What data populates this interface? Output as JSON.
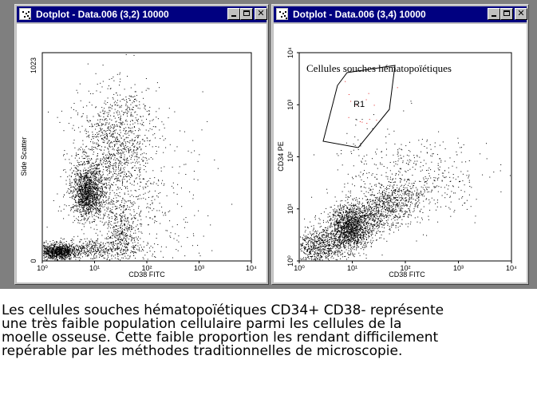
{
  "windows": [
    {
      "title": "Dotplot - Data.006 (3,2) 10000",
      "x_axis": {
        "label": "CD38 FITC",
        "ticks": [
          "10⁰",
          "10¹",
          "10²",
          "10³",
          "10⁴"
        ],
        "scale": "log"
      },
      "y_axis": {
        "label": "Side Scatter",
        "ticks": [
          "0",
          "1023"
        ],
        "scale": "linear"
      }
    },
    {
      "title": "Dotplot - Data.006 (3,4) 10000",
      "x_axis": {
        "label": "CD38 FITC",
        "ticks": [
          "10⁰",
          "10¹",
          "10²",
          "10³",
          "10⁴"
        ],
        "scale": "log"
      },
      "y_axis": {
        "label": "CD34 PE",
        "ticks": [
          "10⁰",
          "10¹",
          "10²",
          "10³",
          "10⁴"
        ],
        "scale": "log"
      },
      "gate_label": "R1",
      "annotation": "Cellules souches hématopoïétiques"
    }
  ],
  "window_buttons": {
    "minimize": "_",
    "maximize": "□",
    "close": "✕"
  },
  "caption": [
    "Les cellules souches hématopoïétiques CD34+ CD38- représente",
    "une très faible population cellulaire parmi les cellules de la",
    "moelle osseuse. Cette faible proportion les rendant difficilement",
    "repérable par les méthodes traditionnelles de microscopie."
  ]
}
